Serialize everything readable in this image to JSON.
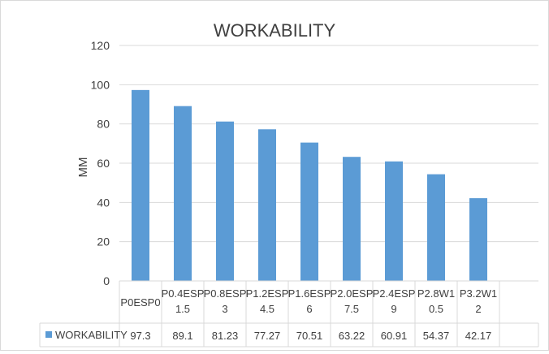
{
  "chart_data": {
    "type": "bar",
    "title": "WORKABILITY",
    "xlabel": "",
    "ylabel": "MM",
    "ylim": [
      0,
      120
    ],
    "yticks": [
      0,
      20,
      40,
      60,
      80,
      100,
      120
    ],
    "grid": true,
    "categories": [
      [
        "P0ESP0"
      ],
      [
        "P0.4ESP",
        "1.5"
      ],
      [
        "P0.8ESP",
        "3"
      ],
      [
        "P1.2ESP",
        "4.5"
      ],
      [
        "P1.6ESP",
        "6"
      ],
      [
        "P2.0ESP",
        "7.5"
      ],
      [
        "P2.4ESP",
        "9"
      ],
      [
        "P2.8W1",
        "0.5"
      ],
      [
        "P3.2W1",
        "2"
      ]
    ],
    "series": [
      {
        "name": "WORKABILITY",
        "color": "#5b9bd5",
        "values": [
          97.3,
          89.1,
          81.23,
          77.27,
          70.51,
          63.22,
          60.91,
          54.37,
          42.17
        ]
      }
    ],
    "legend_placement": "data-table-bottom"
  }
}
